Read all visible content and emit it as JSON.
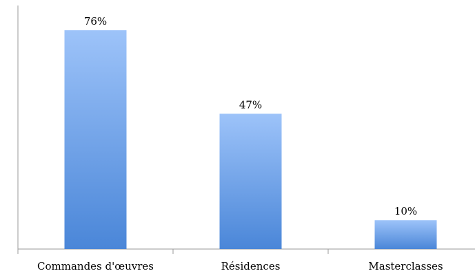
{
  "chart_data": {
    "type": "bar",
    "categories": [
      "Commandes d'œuvres",
      "Résidences",
      "Masterclasses"
    ],
    "values": [
      76,
      47,
      10
    ],
    "value_labels": [
      "76%",
      "47%",
      "10%"
    ],
    "ylim": [
      0,
      80
    ],
    "grid": false,
    "legend": "none",
    "bar_gradient": {
      "top": "#9dc3f9",
      "bottom": "#4a86d8"
    },
    "axis_color": "#9a9a9a"
  }
}
